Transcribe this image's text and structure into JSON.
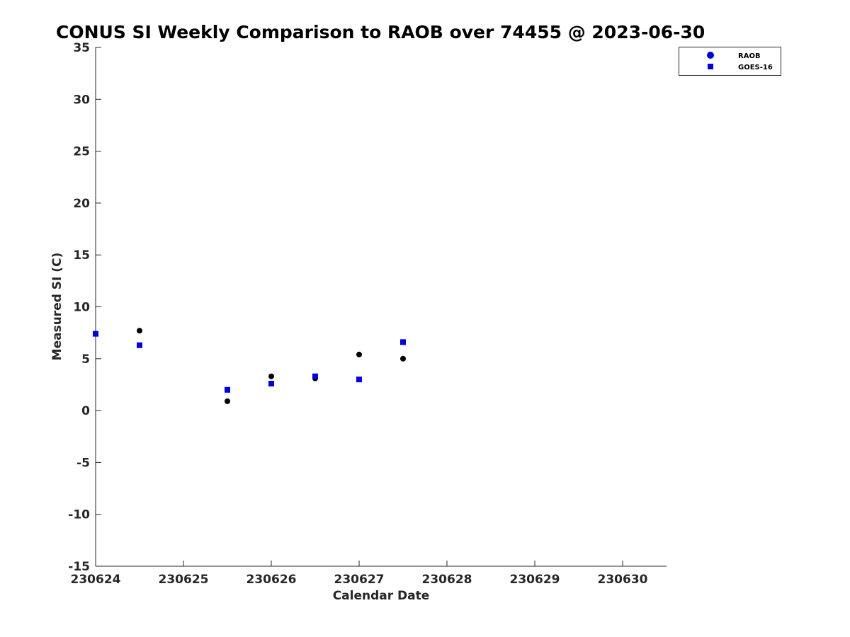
{
  "chart_data": {
    "type": "scatter",
    "title": "CONUS SI Weekly Comparison to RAOB over 74455 @ 2023-06-30",
    "xlabel": "Calendar Date",
    "ylabel": "Measured SI (C)",
    "x_range": [
      0,
      6.5
    ],
    "x_ticks": [
      {
        "value": 0,
        "label": "230624"
      },
      {
        "value": 1,
        "label": "230625"
      },
      {
        "value": 2,
        "label": "230626"
      },
      {
        "value": 3,
        "label": "230627"
      },
      {
        "value": 4,
        "label": "230628"
      },
      {
        "value": 5,
        "label": "230629"
      },
      {
        "value": 6,
        "label": "230630"
      }
    ],
    "ylim": [
      -15,
      35
    ],
    "y_ticks": [
      -15,
      -10,
      -5,
      0,
      5,
      10,
      15,
      20,
      25,
      30,
      35
    ],
    "grid": false,
    "legend_position": "top-right",
    "series": [
      {
        "name": "RAOB",
        "marker": "circle",
        "legend_color": "#0000dd",
        "color": "#000000",
        "x": [
          0,
          0.5,
          1.5,
          2,
          2.5,
          3,
          3.5
        ],
        "y": [
          7.4,
          7.7,
          0.9,
          3.3,
          3.1,
          5.4,
          5.0
        ]
      },
      {
        "name": "GOES-16",
        "marker": "square",
        "legend_color": "#0000dd",
        "color": "#0000dd",
        "x": [
          0,
          0.5,
          1.5,
          2,
          2.5,
          3,
          3.5
        ],
        "y": [
          7.4,
          6.3,
          2.0,
          2.6,
          3.3,
          3.0,
          6.6
        ]
      }
    ]
  }
}
